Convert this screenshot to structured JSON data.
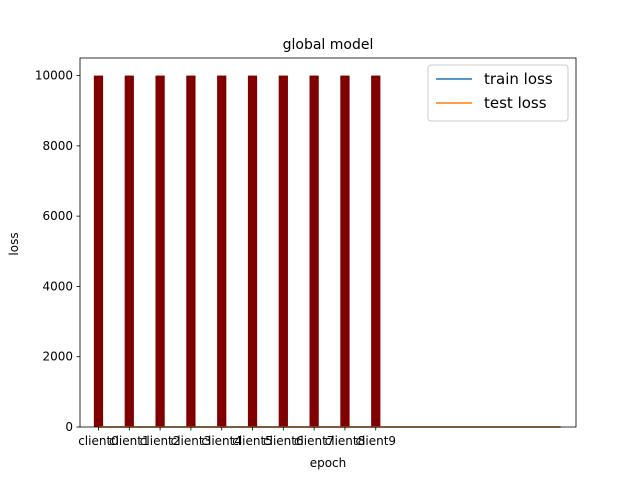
{
  "chart_data": {
    "type": "bar",
    "title": "global model",
    "xlabel": "epoch",
    "ylabel": "loss",
    "categories": [
      "client0",
      "client1",
      "client2",
      "client3",
      "client4",
      "client5",
      "client6",
      "client7",
      "client8",
      "client9"
    ],
    "values": [
      10000,
      10000,
      10000,
      10000,
      10000,
      10000,
      10000,
      10000,
      10000,
      10000
    ],
    "bar_color": "#800000",
    "ylim": [
      0,
      10500
    ],
    "yticks": [
      0,
      2000,
      4000,
      6000,
      8000,
      10000
    ],
    "xlim": [
      -0.6,
      15.5
    ],
    "series": [
      {
        "name": "train loss",
        "type": "line",
        "color": "#1f77b4",
        "x": [
          0,
          15
        ],
        "values": [
          0,
          0
        ]
      },
      {
        "name": "test loss",
        "type": "line",
        "color": "#ff7f0e",
        "x": [
          0,
          15
        ],
        "values": [
          0,
          0
        ]
      }
    ],
    "legend": {
      "position": "top-right",
      "entries": [
        "train loss",
        "test loss"
      ]
    },
    "grid": false
  }
}
